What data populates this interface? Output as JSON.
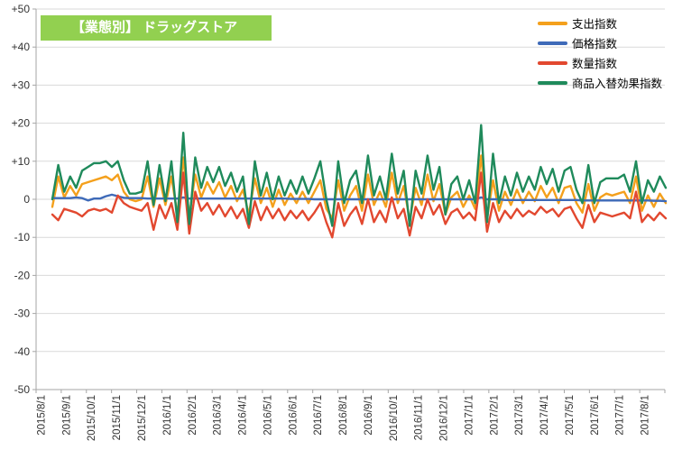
{
  "title": "【業態別】 ドラッグストア",
  "colors": {
    "title_bg": "#92D050",
    "title_text": "#FFFFFF",
    "gridline": "#D9D9D9",
    "axis": "#A6A6A6",
    "tick_label": "#333333",
    "plot_bg": "#FFFFFF"
  },
  "chart_data": {
    "type": "line",
    "title": "【業態別】 ドラッグストア",
    "xlabel": "",
    "ylabel": "",
    "ylim": [
      -50,
      50
    ],
    "y_tick_step": 10,
    "y_ticks": [
      "+50",
      "+40",
      "+30",
      "+20",
      "+10",
      "0",
      "-10",
      "-20",
      "-30",
      "-40",
      "-50"
    ],
    "grid": true,
    "legend_position": "top-right",
    "x_labels": [
      "2015/8/1",
      "2015/9/1",
      "2015/10/1",
      "2015/11/1",
      "2015/12/1",
      "2016/1/1",
      "2016/2/1",
      "2016/3/1",
      "2016/4/1",
      "2016/5/1",
      "2016/6/1",
      "2016/7/1",
      "2016/8/1",
      "2016/9/1",
      "2016/10/1",
      "2016/11/1",
      "2016/12/1",
      "2017/1/1",
      "2017/2/1",
      "2017/3/1",
      "2017/4/1",
      "2017/5/1",
      "2017/6/1",
      "2017/7/1",
      "2017/8/1"
    ],
    "x_label_rotation": -90,
    "sampling_note": "weekly data points, monthly axis labels",
    "series": [
      {
        "name": "支出指数",
        "color": "#F4A01C",
        "values": [
          -2,
          6,
          0.5,
          3.5,
          1,
          4,
          4.5,
          5,
          5.5,
          6,
          5,
          6.5,
          2,
          0,
          -0.5,
          0,
          6,
          -2,
          5.5,
          -1.5,
          6,
          -4,
          11,
          -4.5,
          6.5,
          0.5,
          4.5,
          1.5,
          4.5,
          0.5,
          3.5,
          -0.5,
          2.5,
          -4,
          5.5,
          -1,
          3,
          -2,
          2.5,
          -1.5,
          1.5,
          -1,
          2,
          -1,
          2,
          5,
          -2.5,
          -5,
          5,
          -3,
          1,
          3.5,
          -3,
          6.5,
          -1.5,
          2,
          -2,
          7,
          -1,
          3.5,
          -5.5,
          3,
          -1.5,
          6.5,
          -0.5,
          4,
          -4,
          0.5,
          2,
          -2,
          1,
          -2.5,
          11.5,
          -5,
          5,
          -3,
          2,
          -1.5,
          2.5,
          -1,
          2,
          -0.5,
          3.5,
          0.5,
          3,
          -1,
          3,
          3.5,
          -1,
          -3.5,
          4,
          -3,
          0.5,
          1.5,
          1,
          1.5,
          2,
          -1,
          6,
          -3,
          1,
          -2,
          1.5,
          -1
        ]
      },
      {
        "name": "価格指数",
        "color": "#3E6AB8",
        "values": [
          0.3,
          0.3,
          0.3,
          0.3,
          0.5,
          0.3,
          -0.3,
          0.2,
          0.2,
          0.8,
          1.2,
          0.8,
          0.4,
          0.3,
          0.3,
          0.3,
          0.2,
          0.2,
          0.2,
          0.2,
          0.2,
          0.2,
          0.5,
          0.2,
          0.2,
          0.2,
          0.2,
          0.2,
          0.2,
          0.2,
          0.2,
          0.2,
          0.2,
          0.2,
          0.2,
          0.2,
          0.2,
          0.2,
          0.2,
          0.2,
          0.1,
          0.1,
          0.1,
          0.1,
          0,
          0,
          0,
          0,
          0,
          0,
          0,
          0,
          0,
          0,
          0,
          0,
          0,
          0,
          0,
          0,
          0,
          0,
          0,
          0,
          0,
          0,
          0,
          0,
          0,
          0,
          0,
          0,
          0.5,
          0,
          0,
          0,
          -0.2,
          -0.2,
          -0.2,
          -0.2,
          -0.2,
          -0.2,
          -0.2,
          -0.2,
          -0.2,
          -0.2,
          -0.2,
          -0.2,
          -0.2,
          -0.3,
          -0.3,
          -0.3,
          -0.3,
          -0.3,
          -0.3,
          -0.3,
          -0.3,
          -0.3,
          -0.3,
          -0.3,
          -0.3,
          -0.4,
          -0.4,
          -0.5
        ]
      },
      {
        "name": "数量指数",
        "color": "#E2482F",
        "values": [
          -4,
          -5.5,
          -2.5,
          -3,
          -3.5,
          -4.5,
          -3,
          -2.5,
          -3,
          -2.5,
          -3.5,
          1,
          -1,
          -2,
          -2.5,
          -3,
          -1,
          -8,
          -1.5,
          -5,
          -1,
          -8,
          7,
          -9,
          2,
          -3,
          -1,
          -4,
          -1.5,
          -4.5,
          -2,
          -5,
          -2.5,
          -7.5,
          -0.5,
          -5.5,
          -2,
          -5,
          -2.5,
          -5.5,
          -3,
          -5,
          -3,
          -5.5,
          -3.5,
          -1,
          -6,
          -10,
          -1,
          -7,
          -4,
          -2,
          -6.5,
          0,
          -6,
          -3,
          -6,
          0.5,
          -5,
          -2.5,
          -9.5,
          -2,
          -5,
          0,
          -4,
          -1.5,
          -6.5,
          -3.5,
          -2.5,
          -5,
          -3.5,
          -5.5,
          7,
          -8.5,
          -1,
          -6,
          -3,
          -5,
          -2.5,
          -4.5,
          -3,
          -4,
          -2,
          -3.5,
          -2.5,
          -4.5,
          -2.5,
          -2,
          -5,
          -7.5,
          -1.5,
          -6,
          -3.5,
          -4,
          -4.5,
          -4,
          -3.5,
          -5,
          2,
          -6,
          -4,
          -5.5,
          -3.5,
          -5
        ]
      },
      {
        "name": "商品入替効果指数",
        "color": "#1F8A5B",
        "values": [
          0,
          9,
          2,
          6,
          3,
          7.5,
          8.5,
          9.5,
          9.5,
          10,
          8.5,
          10,
          5,
          1.5,
          1.5,
          2,
          10,
          -1.5,
          9,
          -0.5,
          10,
          -6,
          17.5,
          -6.5,
          11,
          3,
          8.5,
          4.5,
          8.5,
          3.5,
          7,
          2,
          6,
          -6.5,
          10,
          1,
          7,
          0,
          6,
          1,
          5,
          1.5,
          6,
          1.5,
          5.5,
          10,
          0,
          -7,
          10,
          -1,
          5,
          7.5,
          -1,
          11.5,
          1,
          6,
          0,
          12,
          1.5,
          7.5,
          -7,
          7.5,
          1.5,
          11.5,
          2.5,
          8.5,
          -4,
          4,
          6,
          0,
          5,
          -1,
          19.5,
          -6,
          12,
          -1,
          6,
          1,
          7,
          2,
          6,
          2.5,
          8.5,
          4,
          8,
          2,
          7.5,
          8.5,
          2.5,
          -1,
          9,
          -1,
          4.5,
          5.5,
          5.5,
          5.5,
          6.5,
          2,
          10,
          -1,
          5,
          2,
          6,
          3
        ]
      }
    ]
  }
}
